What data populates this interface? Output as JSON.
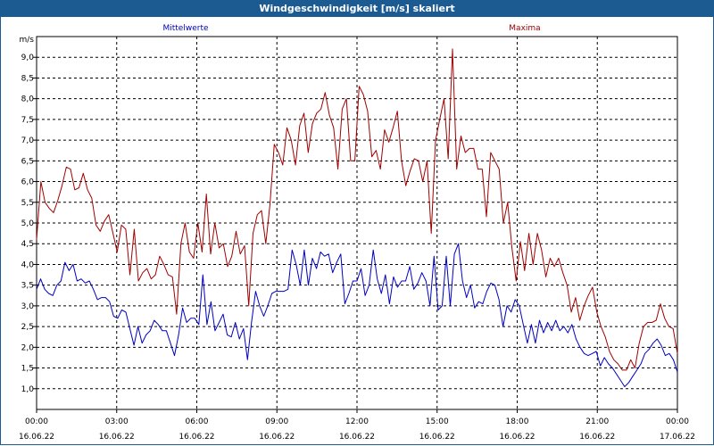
{
  "window": {
    "title": "Windgeschwindigkeit [m/s] skaliert"
  },
  "chart_data": {
    "type": "line",
    "title": "Windgeschwindigkeit [m/s] skaliert",
    "ylabel": "m/s",
    "xlabel": "",
    "ylim": [
      0.5,
      9.5
    ],
    "xlim": [
      0,
      24
    ],
    "grid": true,
    "yticks": [
      "1,0",
      "1,5",
      "2,0",
      "2,5",
      "3,0",
      "3,5",
      "4,0",
      "4,5",
      "5,0",
      "5,5",
      "6,0",
      "6,5",
      "7,0",
      "7,5",
      "8,0",
      "8,5",
      "9,0"
    ],
    "xticks": [
      {
        "time": "00:00",
        "date": "16.06.22"
      },
      {
        "time": "03:00",
        "date": "16.06.22"
      },
      {
        "time": "06:00",
        "date": "16.06.22"
      },
      {
        "time": "09:00",
        "date": "16.06.22"
      },
      {
        "time": "12:00",
        "date": "16.06.22"
      },
      {
        "time": "15:00",
        "date": "16.06.22"
      },
      {
        "time": "18:00",
        "date": "16.06.22"
      },
      {
        "time": "21:00",
        "date": "16.06.22"
      },
      {
        "time": "00:00",
        "date": "17.06.22"
      }
    ],
    "series": [
      {
        "name": "Mittelwerte",
        "color": "#0000c0",
        "values": [
          3.4,
          3.65,
          3.4,
          3.3,
          3.25,
          3.5,
          3.6,
          4.05,
          3.85,
          4.0,
          3.6,
          3.65,
          3.55,
          3.6,
          3.4,
          3.15,
          3.2,
          3.2,
          3.1,
          2.75,
          2.7,
          2.9,
          2.85,
          2.45,
          2.05,
          2.5,
          2.1,
          2.3,
          2.4,
          2.65,
          2.55,
          2.4,
          2.4,
          2.1,
          1.8,
          2.3,
          2.95,
          2.6,
          2.7,
          2.7,
          2.55,
          3.75,
          2.55,
          3.1,
          2.4,
          2.6,
          2.8,
          2.3,
          2.25,
          2.6,
          2.2,
          2.45,
          1.7,
          2.6,
          3.35,
          3.0,
          2.75,
          3.0,
          3.3,
          3.35,
          3.35,
          3.35,
          3.4,
          4.35,
          4.0,
          3.5,
          4.35,
          3.5,
          4.15,
          3.9,
          4.3,
          4.2,
          4.25,
          3.8,
          4.05,
          4.25,
          3.05,
          3.3,
          3.6,
          3.6,
          3.9,
          3.25,
          3.5,
          4.35,
          3.65,
          3.3,
          3.75,
          3.05,
          3.7,
          3.45,
          3.6,
          3.6,
          3.95,
          3.4,
          3.55,
          3.8,
          3.6,
          3.0,
          4.2,
          2.9,
          3.0,
          4.2,
          3.0,
          4.25,
          4.5,
          3.6,
          3.2,
          3.5,
          2.95,
          3.1,
          3.05,
          3.35,
          3.55,
          3.5,
          3.15,
          2.5,
          3.0,
          2.85,
          3.15,
          3.0,
          2.55,
          2.1,
          2.55,
          2.1,
          2.65,
          2.35,
          2.6,
          2.4,
          2.65,
          2.4,
          2.5,
          2.35,
          2.55,
          2.2,
          2.0,
          1.85,
          1.8,
          1.85,
          1.9,
          1.55,
          1.75,
          1.6,
          1.5,
          1.35,
          1.2,
          1.05,
          1.15,
          1.3,
          1.45,
          1.6,
          1.85,
          1.95,
          2.1,
          2.2,
          2.05,
          1.8,
          1.85,
          1.7,
          1.4
        ]
      },
      {
        "name": "Maxima",
        "color": "#a00000",
        "values": [
          4.6,
          6.0,
          5.5,
          5.35,
          5.25,
          5.55,
          5.9,
          6.35,
          6.3,
          5.8,
          5.85,
          6.2,
          5.8,
          5.6,
          4.95,
          4.8,
          5.05,
          5.2,
          4.75,
          4.3,
          4.95,
          4.85,
          3.75,
          4.85,
          3.6,
          3.8,
          3.9,
          3.65,
          3.75,
          4.2,
          4.0,
          3.75,
          3.7,
          2.8,
          4.5,
          5.0,
          4.3,
          4.15,
          5.0,
          4.3,
          5.7,
          4.25,
          5.0,
          4.4,
          4.5,
          3.95,
          4.2,
          4.8,
          4.25,
          4.45,
          3.0,
          4.75,
          5.2,
          5.3,
          4.5,
          5.45,
          6.9,
          6.7,
          6.4,
          7.3,
          7.0,
          6.4,
          7.35,
          7.65,
          6.7,
          7.4,
          7.65,
          7.75,
          8.15,
          7.6,
          7.3,
          6.3,
          7.75,
          8.0,
          6.5,
          6.5,
          8.3,
          8.1,
          7.7,
          6.6,
          6.75,
          6.3,
          7.25,
          6.95,
          7.3,
          7.7,
          6.5,
          5.9,
          6.25,
          6.55,
          6.5,
          6.0,
          6.5,
          4.75,
          7.0,
          7.5,
          8.0,
          6.55,
          9.2,
          6.3,
          7.1,
          6.7,
          6.8,
          6.8,
          6.3,
          6.3,
          5.15,
          6.7,
          6.5,
          6.3,
          5.0,
          5.5,
          4.4,
          3.6,
          4.55,
          3.85,
          4.75,
          4.0,
          4.75,
          4.35,
          3.7,
          4.15,
          3.95,
          4.15,
          3.8,
          3.5,
          2.85,
          3.2,
          2.65,
          3.0,
          3.25,
          3.45,
          2.85,
          2.5,
          2.25,
          1.9,
          1.7,
          1.6,
          1.45,
          1.45,
          1.7,
          1.5,
          2.1,
          2.5,
          2.6,
          2.6,
          2.65,
          3.05,
          2.7,
          2.5,
          2.45,
          1.85
        ]
      }
    ]
  }
}
